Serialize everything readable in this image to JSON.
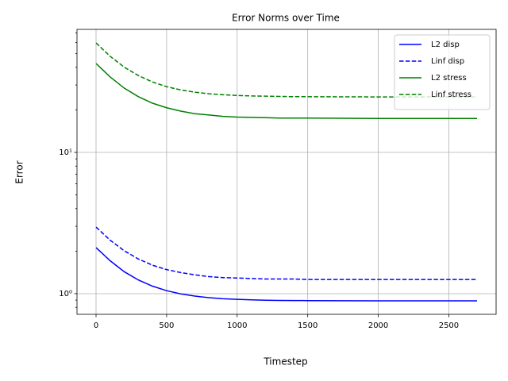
{
  "chart_data": {
    "type": "line",
    "title": "Error Norms over Time",
    "xlabel": "Timestep",
    "ylabel": "Error",
    "x": [
      0,
      100,
      200,
      300,
      400,
      500,
      600,
      700,
      800,
      900,
      1000,
      1100,
      1200,
      1300,
      1400,
      1500,
      2000,
      2500,
      2700
    ],
    "series": [
      {
        "name": "L2 disp",
        "color": "#0000ff",
        "linestyle": "solid",
        "values": [
          2.12,
          1.71,
          1.43,
          1.25,
          1.13,
          1.05,
          0.996,
          0.961,
          0.937,
          0.921,
          0.911,
          0.904,
          0.899,
          0.896,
          0.894,
          0.893,
          0.89,
          0.89,
          0.89
        ]
      },
      {
        "name": "Linf disp",
        "color": "#0000ff",
        "linestyle": "dashed",
        "values": [
          2.96,
          2.39,
          2.01,
          1.76,
          1.59,
          1.48,
          1.41,
          1.36,
          1.32,
          1.3,
          1.29,
          1.28,
          1.27,
          1.27,
          1.27,
          1.26,
          1.26,
          1.26,
          1.26
        ]
      },
      {
        "name": "L2 stress",
        "color": "#008000",
        "linestyle": "solid",
        "values": [
          42.6,
          34.2,
          28.5,
          24.8,
          22.3,
          20.7,
          19.6,
          18.8,
          18.4,
          18.0,
          17.8,
          17.7,
          17.6,
          17.5,
          17.5,
          17.5,
          17.4,
          17.4,
          17.4
        ]
      },
      {
        "name": "Linf stress",
        "color": "#008000",
        "linestyle": "dashed",
        "values": [
          59.6,
          47.9,
          40.1,
          35.0,
          31.5,
          29.2,
          27.7,
          26.7,
          26.0,
          25.6,
          25.3,
          25.1,
          25.0,
          24.9,
          24.8,
          24.8,
          24.7,
          24.7,
          24.7
        ]
      }
    ],
    "xlim": [
      -135,
      2835
    ],
    "xticks": [
      0,
      500,
      1000,
      1500,
      2000,
      2500
    ],
    "ylim": [
      0.714,
      74.3
    ],
    "ylog": true,
    "yticks": [
      {
        "value": 1,
        "label": "10⁰"
      },
      {
        "value": 10,
        "label": "10¹"
      }
    ],
    "yminorticks": [
      0.8,
      0.9,
      2,
      3,
      4,
      5,
      6,
      7,
      8,
      9,
      20,
      30,
      40,
      50,
      60,
      70
    ],
    "grid": true,
    "legend": "upper right"
  }
}
